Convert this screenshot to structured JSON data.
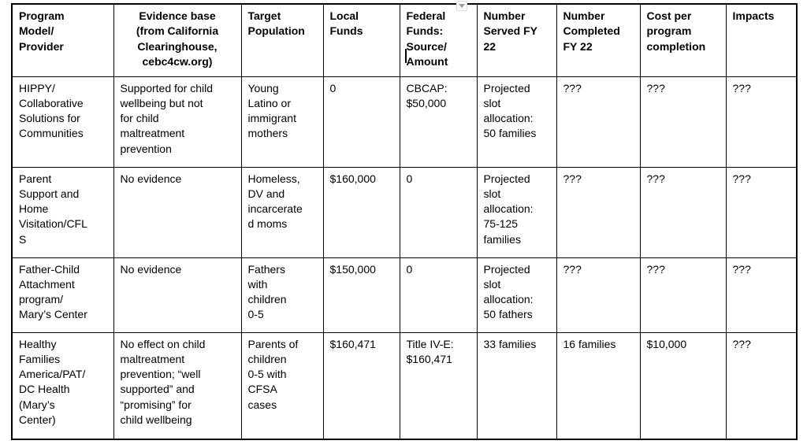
{
  "colors": {
    "page_background": "#ffffff",
    "border": "#000000",
    "text": "#000000",
    "icon_background": "#fafafa",
    "icon_border": "#dcdcdc",
    "icon_glyph": "#9e9e9e"
  },
  "editor": {
    "text_cursor_visible": true,
    "dropdown_icon": "chevron-down"
  },
  "table": {
    "headers": [
      "Program\nModel/\nProvider",
      "Evidence base\n(from California\nClearinghouse,\ncebc4cw.org)",
      "Target\nPopulation",
      "Local\nFunds",
      "Federal\nFunds:\nSource/\nAmount",
      "Number\nServed FY\n22",
      "Number\nCompleted\nFY 22",
      "Cost per\nprogram\ncompletion",
      "Impacts"
    ],
    "rows": [
      [
        "HIPPY/\nCollaborative\nSolutions for\nCommunities",
        "Supported for child\nwellbeing but not\nfor child\nmaltreatment\nprevention",
        "Young\nLatino or\nimmigrant\nmothers",
        "0",
        "CBCAP:\n$50,000",
        "Projected\nslot\nallocation:\n50 families",
        "???",
        "???",
        "???"
      ],
      [
        "Parent\nSupport and\nHome\nVisitation/CFL\nS",
        "No evidence",
        "Homeless,\nDV and\nincarcerate\nd moms",
        "$160,000",
        "0",
        "Projected\nslot\nallocation:\n75-125\nfamilies",
        "???",
        "???",
        "???"
      ],
      [
        "Father-Child\nAttachment\nprogram/\nMary’s Center",
        "No evidence",
        "Fathers\nwith\nchildren\n0-5",
        "$150,000",
        "0",
        "Projected\nslot\nallocation:\n50 fathers",
        "???",
        "???",
        "???"
      ],
      [
        "Healthy\nFamilies\nAmerica/PAT/\nDC Health\n(Mary’s\nCenter)",
        "No effect on child\nmaltreatment\nprevention; “well\nsupported” and\n“promising” for\nchild wellbeing",
        "Parents of\nchildren\n0-5 with\nCFSA\ncases",
        "$160,471",
        "Title IV-E:\n$160,471",
        "33 families",
        "16 families",
        "$10,000",
        "???"
      ]
    ]
  }
}
